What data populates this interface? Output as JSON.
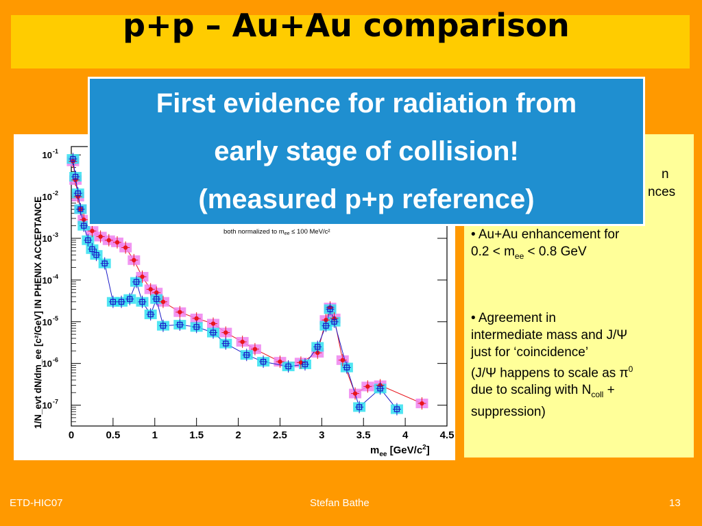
{
  "title": "p+p – Au+Au comparison",
  "callout": {
    "line1": "First evidence for radiation from",
    "line2": "early stage of collision!",
    "line3": "(measured p+p reference)"
  },
  "right_box": {
    "partial_line1": "n",
    "partial_line2": "nces",
    "b1_line1": "• Au+Au enhancement for",
    "b1_line2_pre": "0.2 < m",
    "b1_line2_sub": "ee",
    "b1_line2_post": " < 0.8 GeV",
    "b2_line1": "•  Agreement in",
    "b2_line2": "intermediate mass and J/Ψ",
    "b2_line3": "just for ‘coincidence’",
    "b2_line4": "(J/Ψ happens to scale as π",
    "b2_line4_sup": "0",
    "b2_line5_pre": "due to scaling with N",
    "b2_line5_sub": "coll",
    "b2_line5_post": " +",
    "b2_line6": "suppression)"
  },
  "footer": {
    "left": "ETD-HIC07",
    "center": "Stefan Bathe",
    "right": "13"
  },
  "chart_data": {
    "type": "scatter",
    "ylabel": "1/N_evt dN/dm_ee [c²/GeV] IN PHENIX ACCEPTANCE",
    "xlabel": "m_ee [GeV/c²]",
    "annotation": "both normalized to m_ee ≤ 100 MeV/c²",
    "xlim": [
      0,
      4.5
    ],
    "ylim_log10": [
      -7.5,
      -0.8
    ],
    "log_y": true,
    "x_ticks": [
      0,
      0.5,
      1,
      1.5,
      2,
      2.5,
      3,
      3.5,
      4,
      4.5
    ],
    "x_tick_labels": [
      "0",
      "0.5",
      "1",
      "1.5",
      "2",
      "2.5",
      "3",
      "3.5",
      "4",
      "4.5"
    ],
    "y_ticks_exp": [
      -1,
      -2,
      -3,
      -4,
      -5,
      -6,
      -7
    ],
    "y_tick_labels": [
      "10",
      "10",
      "10",
      "10",
      "10",
      "10",
      "10"
    ],
    "y_tick_exps": [
      "-1",
      "-2",
      "-3",
      "-4",
      "-5",
      "-6",
      "-7"
    ],
    "colors": {
      "red": "#e8141b",
      "blue": "#1a1ac8",
      "magenta_box": "#ee82ee",
      "cyan_box": "#33e0f0"
    },
    "series": [
      {
        "color": "red",
        "marker": "filled-circle",
        "points": [
          [
            0.02,
            0.07
          ],
          [
            0.05,
            0.025
          ],
          [
            0.08,
            0.01
          ],
          [
            0.11,
            0.005
          ],
          [
            0.15,
            0.0028
          ],
          [
            0.25,
            0.0015
          ],
          [
            0.35,
            0.0011
          ],
          [
            0.45,
            0.0009
          ],
          [
            0.55,
            0.0008
          ],
          [
            0.65,
            0.0006
          ],
          [
            0.75,
            0.0003
          ],
          [
            0.85,
            0.00012
          ],
          [
            0.95,
            6e-05
          ],
          [
            1.02,
            5e-05
          ],
          [
            1.1,
            3e-05
          ],
          [
            1.3,
            1.7e-05
          ],
          [
            1.5,
            1.2e-05
          ],
          [
            1.7,
            9e-06
          ],
          [
            1.85,
            5.5e-06
          ],
          [
            2.05,
            3.3e-06
          ],
          [
            2.2,
            2.2e-06
          ],
          [
            2.5,
            1.1e-06
          ],
          [
            2.75,
            1.05e-06
          ],
          [
            2.95,
            1.8e-06
          ],
          [
            3.05,
            1.1e-05
          ],
          [
            3.1,
            2.2e-05
          ],
          [
            3.15,
            1.2e-05
          ],
          [
            3.25,
            1.2e-06
          ],
          [
            3.4,
            1.9e-07
          ],
          [
            3.55,
            2.8e-07
          ],
          [
            3.7,
            3e-07
          ],
          [
            4.2,
            1.1e-07
          ]
        ]
      },
      {
        "color": "blue",
        "marker": "open-square",
        "points": [
          [
            0.02,
            0.08
          ],
          [
            0.05,
            0.03
          ],
          [
            0.08,
            0.012
          ],
          [
            0.11,
            0.005
          ],
          [
            0.15,
            0.002
          ],
          [
            0.2,
            0.0009
          ],
          [
            0.25,
            0.00055
          ],
          [
            0.3,
            0.0004
          ],
          [
            0.4,
            0.00025
          ],
          [
            0.5,
            3e-05
          ],
          [
            0.6,
            3e-05
          ],
          [
            0.7,
            3.5e-05
          ],
          [
            0.78,
            9e-05
          ],
          [
            0.85,
            3e-05
          ],
          [
            0.95,
            1.5e-05
          ],
          [
            1.02,
            3.5e-05
          ],
          [
            1.1,
            8e-06
          ],
          [
            1.3,
            8.5e-06
          ],
          [
            1.5,
            7.5e-06
          ],
          [
            1.7,
            5.5e-06
          ],
          [
            1.85,
            3e-06
          ],
          [
            2.1,
            1.6e-06
          ],
          [
            2.3,
            1.1e-06
          ],
          [
            2.6,
            8.5e-07
          ],
          [
            2.8,
            9.5e-07
          ],
          [
            2.95,
            2.5e-06
          ],
          [
            3.05,
            8e-06
          ],
          [
            3.1,
            2e-05
          ],
          [
            3.15,
            1e-05
          ],
          [
            3.3,
            8e-07
          ],
          [
            3.45,
            9e-08
          ],
          [
            3.7,
            2.5e-07
          ],
          [
            3.9,
            8e-08
          ]
        ]
      }
    ]
  }
}
